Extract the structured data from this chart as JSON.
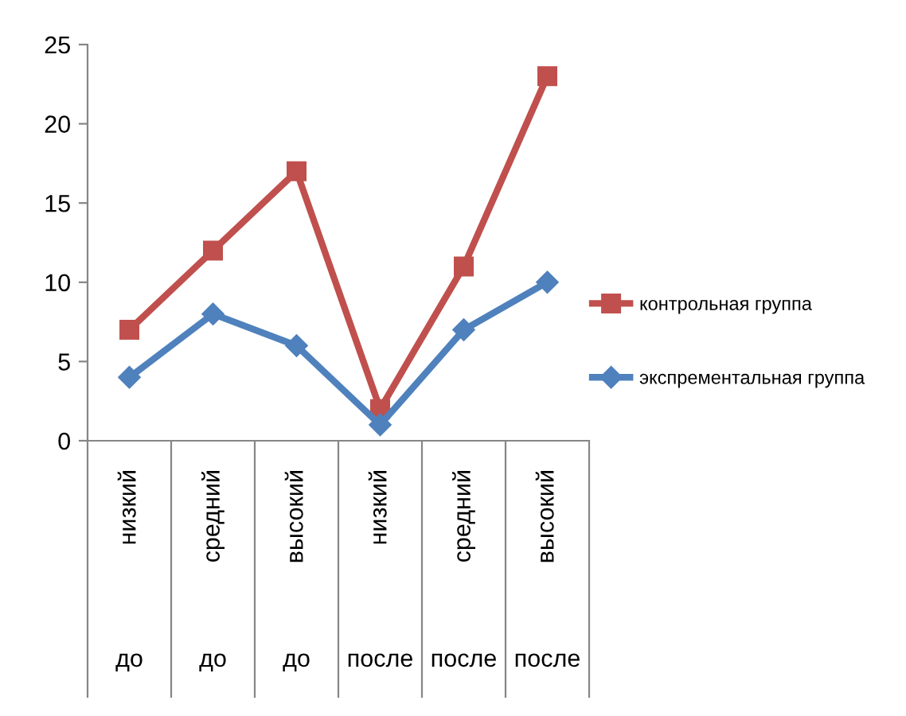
{
  "chart_data": {
    "type": "line",
    "categories": [
      "низкий",
      "средний",
      "высокий",
      "низкий",
      "средний",
      "высокий"
    ],
    "annotations": [
      "до",
      "до",
      "до",
      "после",
      "после",
      "после"
    ],
    "series": [
      {
        "name": "контрольная группа",
        "color": "#c0504d",
        "marker": "square",
        "values": [
          7,
          12,
          17,
          2,
          11,
          23
        ]
      },
      {
        "name": "экспрементальная группа",
        "color": "#4f81bd",
        "marker": "diamond",
        "values": [
          4,
          8,
          6,
          1,
          7,
          10
        ]
      }
    ],
    "ylim": [
      0,
      25
    ],
    "yticks": [
      0,
      5,
      10,
      15,
      20,
      25
    ],
    "grid": false,
    "legend": "right",
    "line_style": "solid"
  }
}
